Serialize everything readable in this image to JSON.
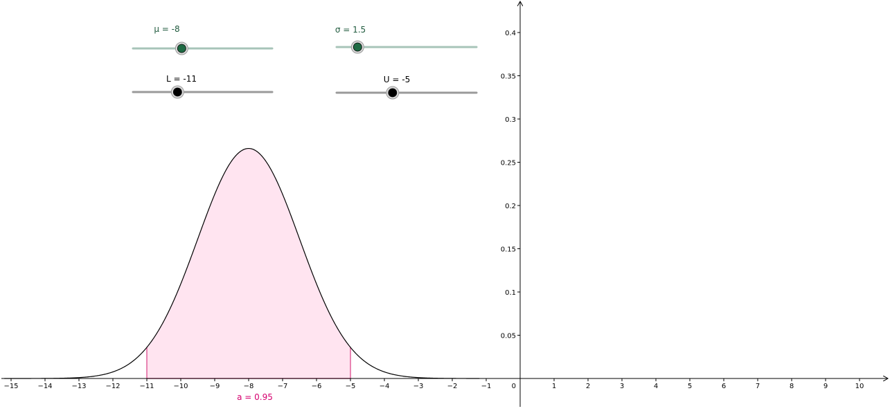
{
  "colors": {
    "background": "#ffffff",
    "axis": "#000000",
    "curve": "#000000",
    "fill": "#ffe4f0",
    "bound_line": "#e0609a",
    "area_label": "#d6006f",
    "slider_param_text": "#1f5a3d",
    "slider_param_track": "#a7c4b8",
    "slider_param_knob": "#1f6b44",
    "slider_bound_text": "#000000",
    "slider_bound_track": "#9a9a9a",
    "slider_bound_knob": "#000000",
    "knob_halo": "#9a9a9a"
  },
  "sliders": [
    {
      "id": "mu",
      "label": "μ = -8",
      "value": -8,
      "fraction": 0.35,
      "kind": "param"
    },
    {
      "id": "sigma",
      "label": "σ = 1.5",
      "value": 1.5,
      "fraction": 0.15,
      "kind": "param"
    },
    {
      "id": "L",
      "label": "L = -11",
      "value": -11,
      "fraction": 0.32,
      "kind": "bound"
    },
    {
      "id": "U",
      "label": "U = -5",
      "value": -5,
      "fraction": 0.4,
      "kind": "bound"
    }
  ],
  "area_label": "a = 0.95",
  "chart_data": {
    "type": "area",
    "distribution": "normal",
    "mean": -8,
    "sd": 1.5,
    "lower": -11,
    "upper": -5,
    "area": 0.95,
    "xlim": [
      -15.2,
      10.9
    ],
    "ylim": [
      -0.03,
      0.435
    ],
    "x_ticks": [
      -15,
      -14,
      -13,
      -12,
      -11,
      -10,
      -9,
      -8,
      -7,
      -6,
      -5,
      -4,
      -3,
      -2,
      -1,
      0,
      1,
      2,
      3,
      4,
      5,
      6,
      7,
      8,
      9,
      10
    ],
    "x_tick_labels": [
      "−15",
      "−14",
      "−13",
      "−12",
      "−11",
      "−10",
      "−9",
      "−8",
      "−7",
      "−6",
      "−5",
      "−4",
      "−3",
      "−2",
      "−1",
      "0",
      "1",
      "2",
      "3",
      "4",
      "5",
      "6",
      "7",
      "8",
      "9",
      "10"
    ],
    "y_ticks": [
      0.05,
      0.1,
      0.15,
      0.2,
      0.25,
      0.3,
      0.35,
      0.4
    ],
    "y_tick_labels": [
      "0.05",
      "0.1",
      "0.15",
      "0.2",
      "0.25",
      "0.3",
      "0.35",
      "0.4"
    ],
    "grid": false
  }
}
